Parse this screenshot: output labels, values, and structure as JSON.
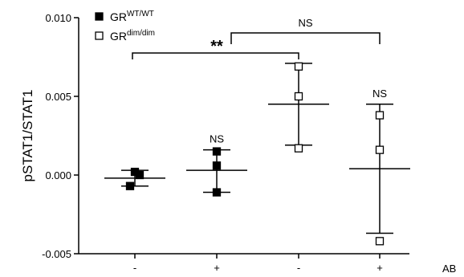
{
  "chart_data": {
    "type": "scatter",
    "ylabel": "pSTAT1/STAT1",
    "ylim": [
      -0.005,
      0.01
    ],
    "yticks": [
      {
        "value": 0.01,
        "label": "0.010"
      },
      {
        "value": 0.005,
        "label": "0.005"
      },
      {
        "value": 0.0,
        "label": "0.000"
      },
      {
        "value": -0.005,
        "label": "-0.005"
      }
    ],
    "categories": [
      "-",
      "+",
      "-",
      "+"
    ],
    "x_axis_extra_label": "AB",
    "legend": {
      "placement": "top-left",
      "entries": [
        {
          "base": "GR",
          "sup": "WT/WT",
          "marker": "filled-square",
          "color": "#000000"
        },
        {
          "base": "GR",
          "sup": "dim/dim",
          "marker": "open-square",
          "color": "#000000"
        }
      ]
    },
    "groups": [
      {
        "category_index": 0,
        "series": 0,
        "points": [
          0.0002,
          0.0,
          -0.0007
        ],
        "mean": -0.0002,
        "sd_low": -0.0007,
        "sd_high": 0.0003
      },
      {
        "category_index": 1,
        "series": 0,
        "points": [
          0.0015,
          0.0006,
          -0.0011
        ],
        "mean": 0.0003,
        "sd_low": -0.0011,
        "sd_high": 0.0016
      },
      {
        "category_index": 2,
        "series": 1,
        "points": [
          0.0069,
          0.005,
          0.0017
        ],
        "mean": 0.0045,
        "sd_low": 0.0019,
        "sd_high": 0.0071
      },
      {
        "category_index": 3,
        "series": 1,
        "points": [
          0.0038,
          0.0016,
          -0.0042
        ],
        "mean": 0.0004,
        "sd_low": -0.0037,
        "sd_high": 0.0045
      }
    ],
    "annotations": [
      {
        "category_index": 1,
        "label": "NS",
        "y": 0.0016
      },
      {
        "category_index": 3,
        "label": "NS",
        "y": 0.0045
      }
    ],
    "brackets": [
      {
        "from": 0,
        "to": 2,
        "label": "**",
        "strong": true
      },
      {
        "from": 1,
        "to": 3,
        "label": "NS",
        "strong": false
      }
    ]
  }
}
